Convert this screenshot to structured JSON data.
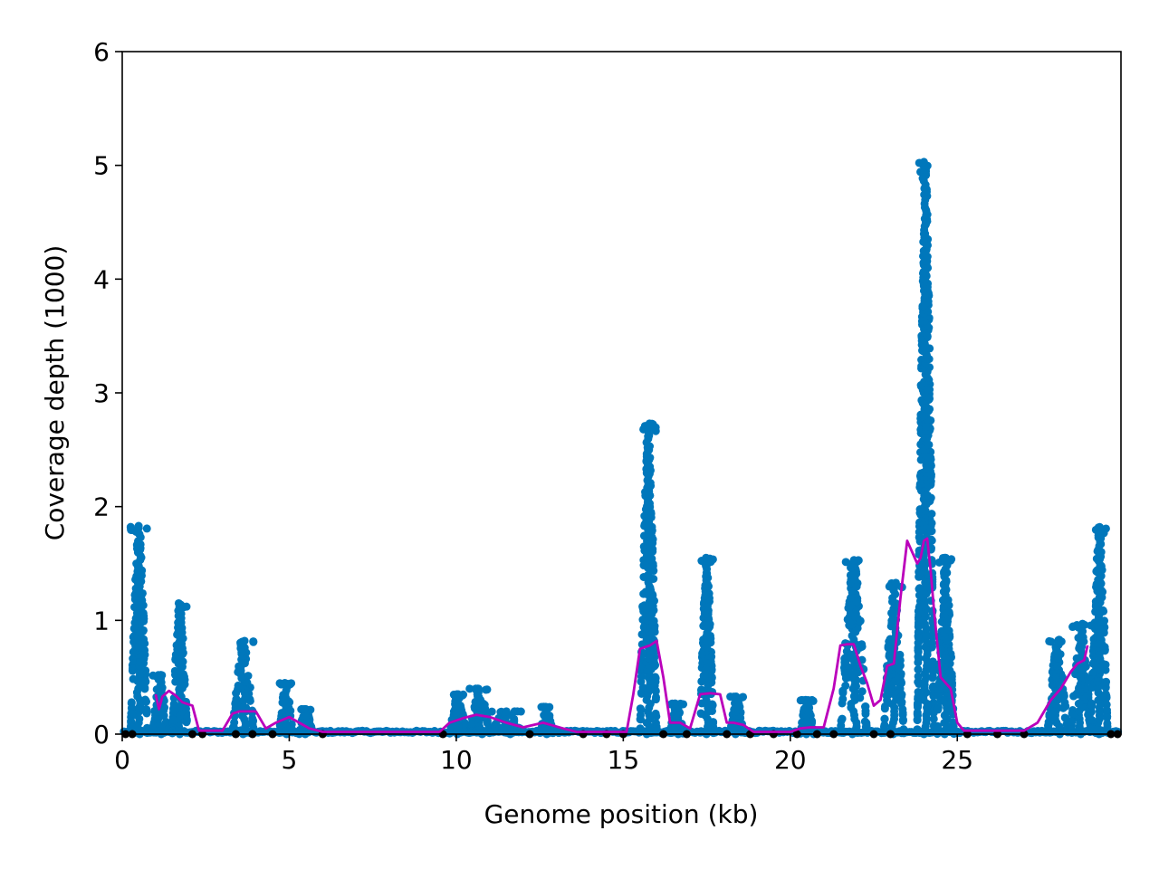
{
  "chart_data": {
    "type": "scatter",
    "title": "",
    "xlabel": "Genome position (kb)",
    "ylabel": "Coverage depth (1000)",
    "xlim": [
      0,
      29.9
    ],
    "ylim": [
      0,
      6
    ],
    "xticks": [
      0,
      5,
      10,
      15,
      20,
      25
    ],
    "yticks": [
      0,
      1,
      2,
      3,
      4,
      5,
      6
    ],
    "xtick_labels": [
      "0",
      "5",
      "10",
      "15",
      "20",
      "25"
    ],
    "ytick_labels": [
      "0",
      "1",
      "2",
      "3",
      "4",
      "5",
      "6"
    ],
    "grid": false,
    "legend": "none",
    "colors": {
      "coverage": "#0077bb",
      "zero_coverage": "#000000",
      "smoothed": "#bb00bb"
    },
    "series": [
      {
        "role": "coverage",
        "kind": "scatter",
        "peaks": [
          {
            "start": 0.25,
            "end": 0.75,
            "max": 1.83
          },
          {
            "start": 0.9,
            "end": 1.35,
            "max": 0.52
          },
          {
            "start": 1.5,
            "end": 1.95,
            "max": 1.15
          },
          {
            "start": 3.3,
            "end": 3.95,
            "max": 0.82
          },
          {
            "start": 4.7,
            "end": 5.1,
            "max": 0.45
          },
          {
            "start": 5.3,
            "end": 5.7,
            "max": 0.22
          },
          {
            "start": 9.8,
            "end": 10.3,
            "max": 0.35
          },
          {
            "start": 10.4,
            "end": 11.0,
            "max": 0.4
          },
          {
            "start": 11.0,
            "end": 12.0,
            "max": 0.2
          },
          {
            "start": 12.5,
            "end": 12.9,
            "max": 0.24
          },
          {
            "start": 15.5,
            "end": 16.0,
            "max": 2.73
          },
          {
            "start": 16.4,
            "end": 16.8,
            "max": 0.27
          },
          {
            "start": 17.3,
            "end": 17.7,
            "max": 1.55
          },
          {
            "start": 18.2,
            "end": 18.6,
            "max": 0.33
          },
          {
            "start": 20.3,
            "end": 20.7,
            "max": 0.3
          },
          {
            "start": 21.5,
            "end": 22.3,
            "max": 1.53
          },
          {
            "start": 22.8,
            "end": 23.4,
            "max": 1.33
          },
          {
            "start": 23.8,
            "end": 24.3,
            "max": 5.03
          },
          {
            "start": 24.4,
            "end": 24.9,
            "max": 1.55
          },
          {
            "start": 27.7,
            "end": 28.3,
            "max": 0.83
          },
          {
            "start": 28.4,
            "end": 29.0,
            "max": 0.97
          },
          {
            "start": 29.0,
            "end": 29.5,
            "max": 1.82
          }
        ]
      },
      {
        "role": "smoothed",
        "kind": "line",
        "x": [
          1.0,
          1.1,
          1.2,
          1.4,
          1.6,
          1.8,
          2.1,
          2.3,
          3.0,
          3.3,
          3.5,
          4.0,
          4.3,
          4.6,
          5.0,
          5.3,
          5.6,
          6.0,
          9.5,
          9.8,
          10.2,
          10.6,
          11.0,
          11.5,
          12.0,
          12.6,
          13.2,
          13.6,
          15.1,
          15.3,
          15.5,
          15.8,
          16.0,
          16.2,
          16.4,
          16.7,
          17.0,
          17.3,
          17.6,
          17.9,
          18.1,
          18.3,
          18.6,
          18.9,
          20.0,
          20.3,
          20.6,
          21.0,
          21.3,
          21.5,
          21.7,
          21.9,
          22.1,
          22.3,
          22.5,
          22.7,
          22.9,
          23.1,
          23.3,
          23.5,
          23.8,
          23.9,
          24.0,
          24.1,
          24.2,
          24.3,
          24.5,
          24.8,
          25.0,
          25.2,
          25.5,
          26.0,
          27.0,
          27.4,
          27.8,
          28.1,
          28.4,
          28.6,
          28.8,
          28.9
        ],
        "y": [
          0.35,
          0.22,
          0.33,
          0.38,
          0.34,
          0.28,
          0.25,
          0.03,
          0.03,
          0.18,
          0.2,
          0.2,
          0.05,
          0.1,
          0.15,
          0.1,
          0.05,
          0.02,
          0.02,
          0.1,
          0.14,
          0.17,
          0.15,
          0.1,
          0.06,
          0.1,
          0.05,
          0.02,
          0.02,
          0.35,
          0.75,
          0.78,
          0.82,
          0.5,
          0.1,
          0.1,
          0.05,
          0.35,
          0.36,
          0.35,
          0.1,
          0.1,
          0.08,
          0.02,
          0.02,
          0.05,
          0.06,
          0.06,
          0.4,
          0.78,
          0.79,
          0.79,
          0.6,
          0.45,
          0.25,
          0.3,
          0.6,
          0.62,
          1.2,
          1.7,
          1.5,
          1.55,
          1.7,
          1.72,
          1.45,
          1.1,
          0.5,
          0.4,
          0.1,
          0.03,
          0.03,
          0.03,
          0.03,
          0.1,
          0.3,
          0.4,
          0.55,
          0.62,
          0.65,
          0.78
        ]
      },
      {
        "role": "zero_coverage",
        "kind": "scatter",
        "x": [
          0.1,
          0.3,
          2.1,
          2.4,
          3.4,
          3.9,
          4.5,
          6.0,
          9.6,
          12.2,
          13.8,
          14.5,
          15.0,
          16.2,
          16.9,
          18.1,
          18.8,
          19.5,
          20.2,
          20.8,
          21.3,
          22.5,
          23.0,
          25.3,
          26.2,
          27.0,
          29.6,
          29.8
        ]
      }
    ]
  }
}
